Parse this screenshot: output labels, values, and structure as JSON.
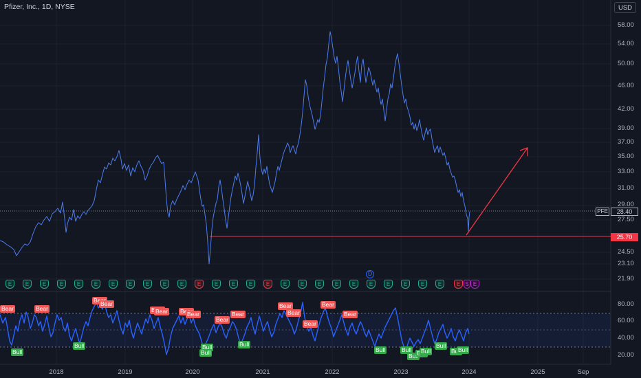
{
  "header": {
    "title": "Pfizer, Inc., 1D, NYSE",
    "currency": "USD"
  },
  "colors": {
    "background": "#131722",
    "price_line": "#4c7df0",
    "rsi_line": "#2962ff",
    "level_line": "#f23645",
    "arrow": "#f23645",
    "bear": "#f05858",
    "bull": "#33a94a",
    "earnings": "#22ab94"
  },
  "price_axis": {
    "labels": [
      "58.00",
      "54.00",
      "50.00",
      "46.00",
      "42.00",
      "39.00",
      "37.00",
      "35.00",
      "33.00",
      "31.00",
      "29.00",
      "27.50",
      "24.50",
      "23.10",
      "21.90"
    ],
    "scale": "log"
  },
  "last_price": {
    "symbol": "PFE",
    "value": "28.40"
  },
  "support_level": {
    "value": "25.70"
  },
  "rsi_axis": {
    "labels": [
      "80.00",
      "60.00",
      "40.00",
      "20.00"
    ],
    "band": [
      30,
      70
    ],
    "mid": 50
  },
  "time_axis": {
    "labels": [
      "2018",
      "2019",
      "2020",
      "2021",
      "2022",
      "2023",
      "2024",
      "2025",
      "Sep"
    ]
  },
  "events": {
    "earnings_label": "E",
    "dividend_label": "D",
    "split_label": "S"
  },
  "signals": {
    "bear_label": "Bear",
    "bull_label": "Bull"
  },
  "chart_data": {
    "type": "line",
    "title": "Pfizer, Inc., 1D, NYSE",
    "xlabel": "",
    "ylabel": "",
    "price_series": {
      "name": "PFE",
      "x": [
        "2017-07",
        "2017-10",
        "2018-01",
        "2018-04",
        "2018-07",
        "2018-09",
        "2018-12",
        "2019-02",
        "2019-05",
        "2019-08",
        "2019-10",
        "2019-12",
        "2020-02",
        "2020-03",
        "2020-05",
        "2020-08",
        "2020-11",
        "2021-01",
        "2021-04",
        "2021-07",
        "2021-09",
        "2021-12",
        "2022-02",
        "2022-04",
        "2022-06",
        "2022-09",
        "2022-12",
        "2023-02",
        "2023-04",
        "2023-06",
        "2023-08",
        "2023-10",
        "2023-12"
      ],
      "y": [
        25.0,
        24.6,
        26.9,
        27.8,
        30.1,
        33.5,
        35.8,
        33.6,
        32.0,
        33.9,
        35.2,
        36.0,
        33.2,
        27.5,
        31.1,
        30.0,
        36.8,
        36.0,
        34.6,
        41.5,
        43.8,
        55.5,
        49.0,
        52.0,
        48.5,
        44.5,
        51.5,
        43.0,
        40.0,
        37.5,
        35.5,
        33.0,
        28.4
      ]
    },
    "support_line": {
      "y": 25.7
    },
    "projection_arrow": {
      "from": {
        "x": "2023-12",
        "y": 25.7
      },
      "to": {
        "x": "2024-10",
        "y": 36.0
      }
    },
    "rsi_series": {
      "x": [
        "2017-07",
        "2017-11",
        "2018-03",
        "2018-07",
        "2018-10",
        "2019-01",
        "2019-04",
        "2019-08",
        "2019-11",
        "2020-02",
        "2020-04",
        "2020-07",
        "2020-10",
        "2021-01",
        "2021-04",
        "2021-07",
        "2021-10",
        "2022-01",
        "2022-04",
        "2022-07",
        "2022-10",
        "2023-01",
        "2023-04",
        "2023-07",
        "2023-10",
        "2023-12"
      ],
      "y": [
        72,
        45,
        58,
        50,
        82,
        60,
        40,
        70,
        35,
        68,
        30,
        55,
        45,
        65,
        40,
        58,
        75,
        55,
        62,
        48,
        70,
        52,
        38,
        58,
        36,
        48
      ]
    },
    "ylim_rsi": [
      15,
      90
    ],
    "price_axis_ticks": [
      21.9,
      23.1,
      24.5,
      27.5,
      29.0,
      31.0,
      33.0,
      35.0,
      37.0,
      39.0,
      42.0,
      46.0,
      50.0,
      54.0,
      58.0
    ]
  }
}
